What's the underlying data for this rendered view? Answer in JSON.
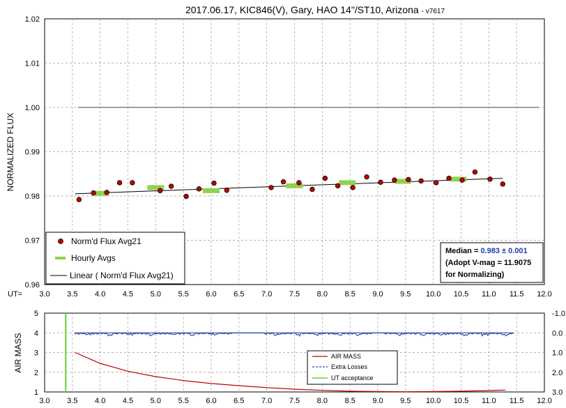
{
  "chart_data": [
    {
      "type": "scatter",
      "title": "2017.06.17, KIC846(V), Gary, HAO 14\"/ST10, Arizona",
      "title_suffix": "- v7617",
      "ylabel": "NORMALIZED FLUX",
      "xlabel": "UT=",
      "xlim": [
        3.0,
        12.0
      ],
      "ylim": [
        0.96,
        1.02
      ],
      "x_ticks": [
        "3.0",
        "3.5",
        "4.0",
        "4.5",
        "5.0",
        "5.5",
        "6.0",
        "6.5",
        "7.0",
        "7.5",
        "8.0",
        "8.5",
        "9.0",
        "9.5",
        "10.0",
        "10.5",
        "11.0",
        "11.5",
        "12.0"
      ],
      "y_ticks": [
        "0.96",
        "0.97",
        "0.98",
        "0.99",
        "1.00",
        "1.01",
        "1.02"
      ],
      "grid": true,
      "reference_line": {
        "y": 1.0,
        "x": [
          3.6,
          11.9
        ],
        "color": "#808080"
      },
      "series": [
        {
          "name": "Norm'd Flux Avg21",
          "color": "#c00000",
          "x": [
            3.62,
            3.88,
            4.12,
            4.35,
            4.58,
            5.08,
            5.28,
            5.55,
            5.78,
            6.05,
            6.28,
            7.08,
            7.3,
            7.58,
            7.82,
            8.05,
            8.28,
            8.55,
            8.8,
            9.05,
            9.3,
            9.55,
            9.78,
            10.05,
            10.28,
            10.52,
            10.75,
            11.02,
            11.25
          ],
          "y": [
            0.9792,
            0.9807,
            0.9808,
            0.983,
            0.983,
            0.9812,
            0.9822,
            0.9799,
            0.9816,
            0.9829,
            0.9813,
            0.9819,
            0.9832,
            0.983,
            0.9815,
            0.984,
            0.9823,
            0.9819,
            0.9843,
            0.9831,
            0.9836,
            0.9837,
            0.9834,
            0.983,
            0.984,
            0.9836,
            0.9854,
            0.9838,
            0.9827
          ]
        },
        {
          "name": "Hourly Avgs",
          "color": "#92d050",
          "x": [
            4.0,
            5.0,
            6.0,
            7.5,
            8.45,
            9.45,
            10.45
          ],
          "y": [
            0.9806,
            0.9819,
            0.9812,
            0.9823,
            0.983,
            0.9833,
            0.9838
          ]
        },
        {
          "name": "Linear ( Norm'd Flux Avg21)",
          "color": "#000000",
          "x": [
            3.55,
            11.25
          ],
          "y": [
            0.9805,
            0.984
          ]
        }
      ],
      "legend_position": "bottom-left",
      "annotation": {
        "median_label": "Median = ",
        "median_value": "0.983 ± 0.001",
        "line2": "(Adopt V-mag = 11.9075",
        "line3": " for Normalizing)"
      }
    },
    {
      "type": "line",
      "ylabel": "AIR MASS",
      "xlim": [
        3.0,
        12.0
      ],
      "ylim": [
        1,
        5
      ],
      "y2lim": [
        3.0,
        -1.0
      ],
      "x_ticks": [
        "3.0",
        "3.5",
        "4.0",
        "4.5",
        "5.0",
        "5.5",
        "6.0",
        "6.5",
        "7.0",
        "7.5",
        "8.0",
        "8.5",
        "9.0",
        "9.5",
        "10.0",
        "10.5",
        "11.0",
        "11.5",
        "12.0"
      ],
      "y_ticks": [
        "1",
        "2",
        "3",
        "4",
        "5"
      ],
      "y2_ticks": [
        "3.0",
        "2.0",
        "1.0",
        "0.0",
        "-1.0"
      ],
      "grid": true,
      "series": [
        {
          "name": "AIR MASS",
          "color": "#c00000",
          "x": [
            3.55,
            4.0,
            4.5,
            5.0,
            5.5,
            6.0,
            6.5,
            7.0,
            7.5,
            8.0,
            8.5,
            9.0,
            9.5,
            10.0,
            10.5,
            11.0,
            11.3
          ],
          "y": [
            3.0,
            2.45,
            2.05,
            1.78,
            1.58,
            1.43,
            1.32,
            1.22,
            1.14,
            1.08,
            1.04,
            1.02,
            1.01,
            1.02,
            1.04,
            1.07,
            1.1
          ]
        },
        {
          "name": "Extra Losses",
          "color": "#1f3ea8",
          "x": [
            3.55,
            11.45
          ],
          "y": [
            0.0,
            0.0
          ]
        },
        {
          "name": "UT acceptance",
          "color": "#66cc33",
          "x": [
            3.38,
            3.38
          ],
          "y": [
            1,
            5
          ]
        }
      ],
      "legend_position": "bottom-right"
    }
  ]
}
